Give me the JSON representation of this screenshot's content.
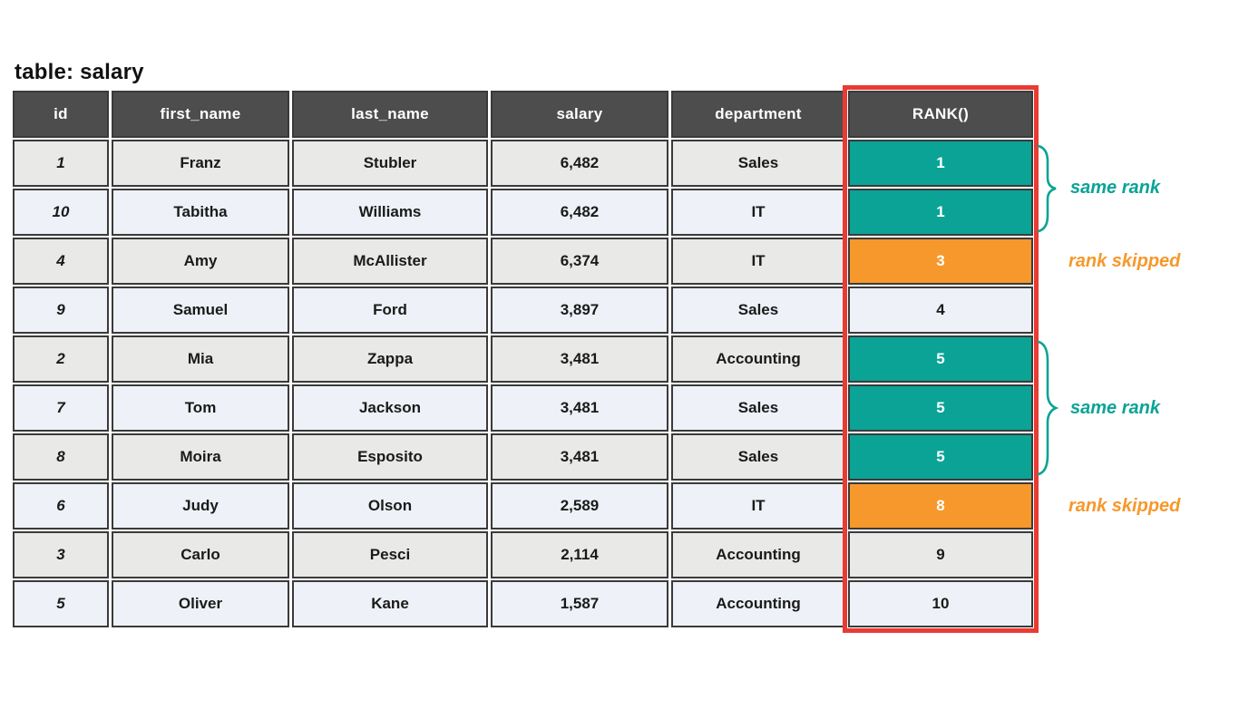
{
  "title": "table: salary",
  "colors": {
    "teal": "#0AA396",
    "orange": "#F6982C",
    "red_outline": "#E83B34",
    "header_bg": "#4D4D4D",
    "row_odd": "#E9E9E7",
    "row_even": "#EEF1F7",
    "cell_border": "#3A3A3A"
  },
  "chart_data": {
    "type": "table",
    "title": "table: salary",
    "columns": [
      "id",
      "first_name",
      "last_name",
      "salary",
      "department",
      "RANK()"
    ],
    "highlighted_column": "RANK()",
    "rows": [
      {
        "id": "1",
        "first_name": "Franz",
        "last_name": "Stubler",
        "salary": "6,482",
        "department": "Sales",
        "rank": "1",
        "rank_highlight": "teal"
      },
      {
        "id": "10",
        "first_name": "Tabitha",
        "last_name": "Williams",
        "salary": "6,482",
        "department": "IT",
        "rank": "1",
        "rank_highlight": "teal"
      },
      {
        "id": "4",
        "first_name": "Amy",
        "last_name": "McAllister",
        "salary": "6,374",
        "department": "IT",
        "rank": "3",
        "rank_highlight": "orange"
      },
      {
        "id": "9",
        "first_name": "Samuel",
        "last_name": "Ford",
        "salary": "3,897",
        "department": "Sales",
        "rank": "4",
        "rank_highlight": "none"
      },
      {
        "id": "2",
        "first_name": "Mia",
        "last_name": "Zappa",
        "salary": "3,481",
        "department": "Accounting",
        "rank": "5",
        "rank_highlight": "teal"
      },
      {
        "id": "7",
        "first_name": "Tom",
        "last_name": "Jackson",
        "salary": "3,481",
        "department": "Sales",
        "rank": "5",
        "rank_highlight": "teal"
      },
      {
        "id": "8",
        "first_name": "Moira",
        "last_name": "Esposito",
        "salary": "3,481",
        "department": "Sales",
        "rank": "5",
        "rank_highlight": "teal"
      },
      {
        "id": "6",
        "first_name": "Judy",
        "last_name": "Olson",
        "salary": "2,589",
        "department": "IT",
        "rank": "8",
        "rank_highlight": "orange"
      },
      {
        "id": "3",
        "first_name": "Carlo",
        "last_name": "Pesci",
        "salary": "2,114",
        "department": "Accounting",
        "rank": "9",
        "rank_highlight": "none"
      },
      {
        "id": "5",
        "first_name": "Oliver",
        "last_name": "Kane",
        "salary": "1,587",
        "department": "Accounting",
        "rank": "10",
        "rank_highlight": "none"
      }
    ],
    "annotations": [
      {
        "text": "same rank",
        "color": "teal",
        "target_rows": "1-2"
      },
      {
        "text": "rank skipped",
        "color": "orange",
        "target_rows": "3"
      },
      {
        "text": "same rank",
        "color": "teal",
        "target_rows": "5-7"
      },
      {
        "text": "rank skipped",
        "color": "orange",
        "target_rows": "8"
      }
    ]
  }
}
